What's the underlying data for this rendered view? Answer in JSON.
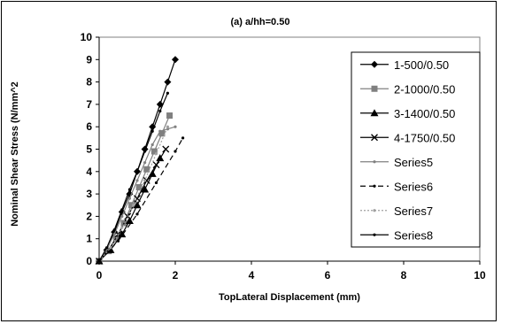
{
  "chart_data": {
    "type": "line",
    "title": "(a) a/hh=0.50",
    "xlabel": "TopLateral Displacement (mm)",
    "ylabel": "Nominal Shear Stress (N/mm^2",
    "xlim": [
      0,
      10
    ],
    "ylim": [
      0,
      10
    ],
    "xticks": [
      "0",
      "2",
      "4",
      "6",
      "8",
      "10"
    ],
    "yticks": [
      "0",
      "1",
      "2",
      "3",
      "4",
      "5",
      "6",
      "7",
      "8",
      "9",
      "10"
    ],
    "grid": false,
    "legend_position": "right",
    "series": [
      {
        "name": "1-500/0.50",
        "marker": "diamond",
        "color": "#000000",
        "dash": "",
        "x": [
          0,
          0.2,
          0.4,
          0.6,
          0.8,
          1.0,
          1.2,
          1.4,
          1.6,
          1.8,
          2.0
        ],
        "y": [
          0,
          0.5,
          1.3,
          2.2,
          3.0,
          4.0,
          5.0,
          6.0,
          7.0,
          8.0,
          9.0
        ]
      },
      {
        "name": "2-1000/0.50",
        "marker": "square",
        "color": "#808080",
        "dash": "",
        "x": [
          0,
          0.25,
          0.45,
          0.65,
          0.85,
          1.05,
          1.25,
          1.45,
          1.65,
          1.85
        ],
        "y": [
          0,
          0.45,
          1.0,
          1.7,
          2.5,
          3.3,
          4.1,
          4.9,
          5.7,
          6.5
        ]
      },
      {
        "name": "3-1400/0.50",
        "marker": "triangle",
        "color": "#000000",
        "dash": "",
        "x": [
          0,
          0.3,
          0.6,
          0.8,
          1.0,
          1.2,
          1.4,
          1.6
        ],
        "y": [
          0,
          0.5,
          1.2,
          1.8,
          2.5,
          3.2,
          3.9,
          4.6
        ]
      },
      {
        "name": "4-1750/0.50",
        "marker": "x",
        "color": "#000000",
        "dash": "",
        "x": [
          0,
          0.25,
          0.5,
          0.75,
          1.0,
          1.25,
          1.5,
          1.75
        ],
        "y": [
          0,
          0.5,
          1.2,
          2.0,
          2.8,
          3.6,
          4.3,
          5.0
        ]
      },
      {
        "name": "Series5",
        "marker": "dot",
        "color": "#808080",
        "dash": "",
        "x": [
          0,
          0.2,
          0.4,
          0.6,
          0.8,
          1.0,
          1.2,
          1.4,
          1.6,
          1.8,
          2.0
        ],
        "y": [
          0,
          0.55,
          1.2,
          2.0,
          2.8,
          3.6,
          4.4,
          5.2,
          5.8,
          5.9,
          6.0
        ]
      },
      {
        "name": "Series6",
        "marker": "dot",
        "color": "#000000",
        "dash": "6,4",
        "x": [
          0,
          0.5,
          1.0,
          1.5,
          2.0,
          2.2
        ],
        "y": [
          0,
          0.9,
          2.1,
          3.5,
          4.9,
          5.5
        ]
      },
      {
        "name": "Series7",
        "marker": "dot",
        "color": "#a0a0a0",
        "dash": "2,2",
        "x": [
          0,
          0.3,
          0.6,
          0.9,
          1.2,
          1.5,
          1.8
        ],
        "y": [
          0,
          0.6,
          1.5,
          2.5,
          3.6,
          4.8,
          6.0
        ]
      },
      {
        "name": "Series8",
        "marker": "dot",
        "color": "#000000",
        "dash": "",
        "x": [
          0,
          0.2,
          0.4,
          0.6,
          0.8,
          1.0,
          1.2,
          1.4,
          1.6,
          1.8
        ],
        "y": [
          0,
          0.6,
          1.4,
          2.3,
          3.2,
          4.0,
          4.9,
          5.8,
          6.7,
          7.5
        ]
      }
    ]
  }
}
